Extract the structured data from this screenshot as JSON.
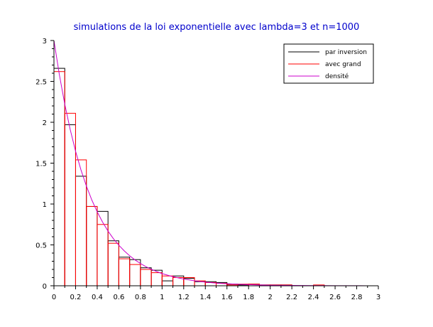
{
  "chart_data": {
    "type": "bar",
    "title": "simulations de la loi exponentielle avec lambda=3 et n=1000",
    "xlabel": "",
    "ylabel": "",
    "xlim": [
      0,
      3
    ],
    "ylim": [
      0,
      3
    ],
    "x_ticks": [
      "0",
      "0.2",
      "0.4",
      "0.6",
      "0.8",
      "1",
      "1.2",
      "1.4",
      "1.6",
      "1.8",
      "2",
      "2.2",
      "2.4",
      "2.6",
      "2.8",
      "3"
    ],
    "y_ticks": [
      "0",
      "0.5",
      "1",
      "1.5",
      "2",
      "2.5",
      "3"
    ],
    "grid": false,
    "legend_position": "top-right",
    "bin_edges": [
      0,
      0.1,
      0.2,
      0.3,
      0.4,
      0.5,
      0.6,
      0.7,
      0.8,
      0.9,
      1.0,
      1.1,
      1.2,
      1.3,
      1.4,
      1.5,
      1.6,
      1.7,
      1.8,
      1.9,
      2.0,
      2.1,
      2.2,
      2.3,
      2.4,
      2.5
    ],
    "series": [
      {
        "name": "par inversion",
        "color": "#000000",
        "kind": "histogram",
        "values": [
          2.66,
          1.97,
          1.34,
          0.97,
          0.91,
          0.55,
          0.35,
          0.32,
          0.22,
          0.19,
          0.06,
          0.12,
          0.09,
          0.05,
          0.05,
          0.04,
          0.02,
          0.01,
          0.02,
          0.01,
          0.01,
          0.01,
          0.0,
          0.0,
          0.0
        ]
      },
      {
        "name": "avec grand",
        "color": "#ff0000",
        "kind": "histogram",
        "values": [
          2.62,
          2.11,
          1.54,
          0.97,
          0.75,
          0.52,
          0.33,
          0.26,
          0.2,
          0.16,
          0.12,
          0.1,
          0.1,
          0.06,
          0.04,
          0.03,
          0.01,
          0.02,
          0.02,
          0.01,
          0.01,
          0.01,
          0.0,
          0.0,
          0.01
        ]
      },
      {
        "name": "densité",
        "color": "#cc00cc",
        "kind": "line",
        "function": "3*exp(-3x)",
        "x": [
          0,
          0.05,
          0.1,
          0.15,
          0.2,
          0.25,
          0.3,
          0.35,
          0.4,
          0.45,
          0.5,
          0.55,
          0.6,
          0.65,
          0.7,
          0.75,
          0.8,
          0.85,
          0.9,
          0.95,
          1.0,
          1.1,
          1.2,
          1.3,
          1.4,
          1.5,
          1.6,
          1.7,
          1.8,
          1.9,
          2.0,
          2.1,
          2.2,
          2.3,
          2.4,
          2.5,
          2.6,
          2.7,
          2.8,
          2.9,
          3.0
        ],
        "y": [
          3.0,
          2.582,
          2.222,
          1.913,
          1.646,
          1.417,
          1.22,
          1.05,
          0.904,
          0.778,
          0.669,
          0.576,
          0.496,
          0.427,
          0.367,
          0.316,
          0.272,
          0.234,
          0.202,
          0.174,
          0.149,
          0.111,
          0.082,
          0.061,
          0.045,
          0.033,
          0.025,
          0.018,
          0.014,
          0.01,
          0.007,
          0.005,
          0.004,
          0.003,
          0.002,
          0.002,
          0.001,
          0.001,
          0.001,
          0.0,
          0.0
        ]
      }
    ]
  }
}
